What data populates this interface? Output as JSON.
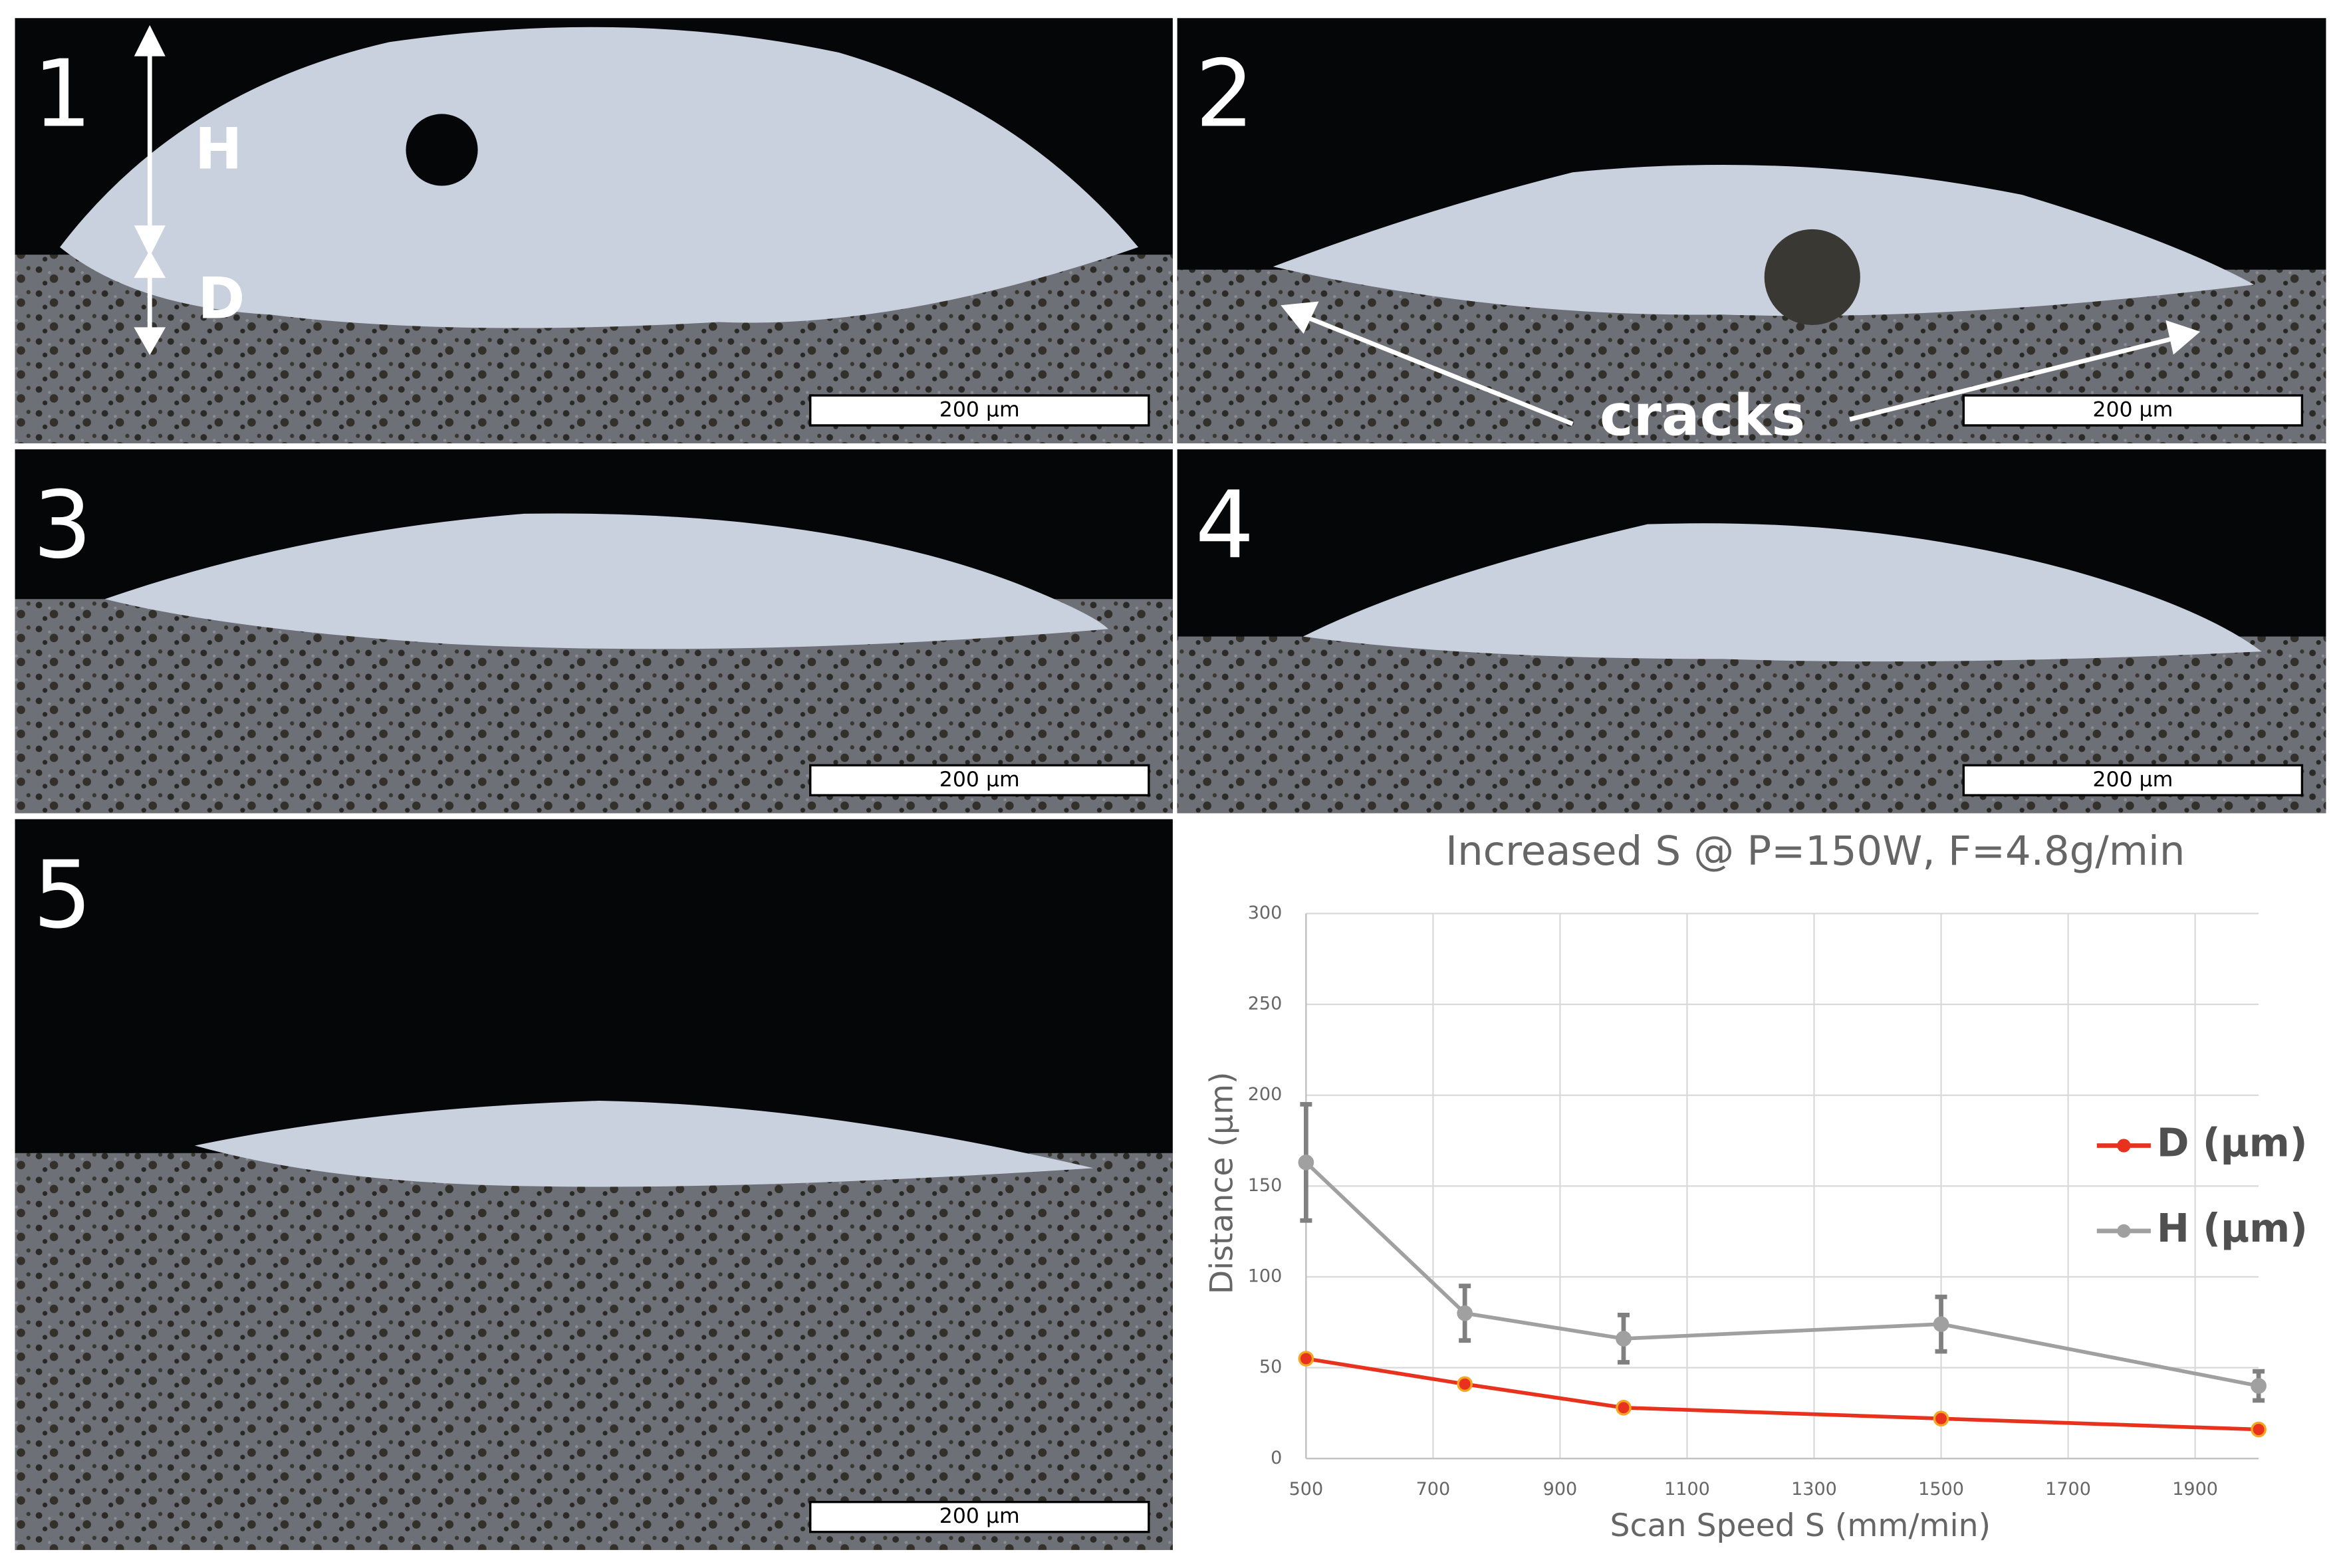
{
  "panels": [
    {
      "label": "1",
      "scale_bar": "200 µm"
    },
    {
      "label": "2",
      "scale_bar": "200 µm"
    },
    {
      "label": "3",
      "scale_bar": "200 µm"
    },
    {
      "label": "4",
      "scale_bar": "200 µm"
    },
    {
      "label": "5",
      "scale_bar": "200 µm"
    }
  ],
  "annotations": {
    "height": "H",
    "depth": "D",
    "cracks": "cracks"
  },
  "chart_data": {
    "type": "line",
    "title": "Increased S @ P=150W, F=4.8g/min",
    "x_label": "Scan Speed S (mm/min)",
    "y_label": "Distance (µm)",
    "x": [
      500,
      750,
      1000,
      1500,
      2000
    ],
    "series": [
      {
        "name": "D (µm)",
        "color": "#e8321e",
        "values": [
          55,
          41,
          28,
          22,
          16
        ]
      },
      {
        "name": "H (µm)",
        "color": "#a0a0a0",
        "values": [
          163,
          80,
          66,
          74,
          40
        ],
        "errors": [
          32,
          15,
          13,
          15,
          8
        ]
      }
    ],
    "xlim": [
      500,
      2000
    ],
    "xticks": [
      500,
      700,
      900,
      1100,
      1300,
      1500,
      1700,
      1900
    ],
    "ylim": [
      0,
      300
    ],
    "yticks": [
      0,
      50,
      100,
      150,
      200,
      250,
      300
    ],
    "grid": true,
    "legend": "right"
  }
}
